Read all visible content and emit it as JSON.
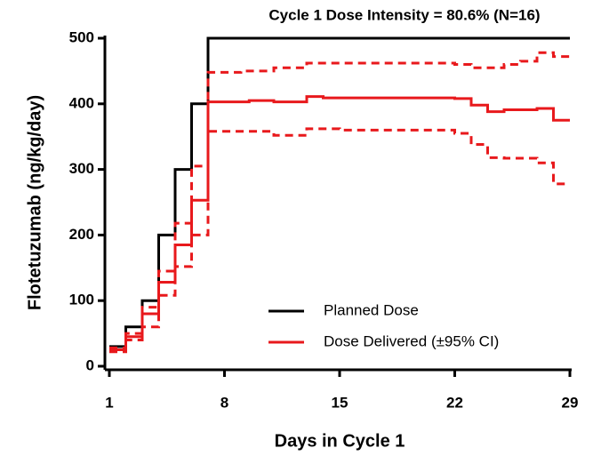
{
  "chart_data": {
    "type": "line",
    "step": "post",
    "title": "Cycle 1 Dose Intensity = 80.6% (N=16)",
    "xlabel": "Days in Cycle 1",
    "ylabel": "Flotetuzumab (ng/kg/day)",
    "xlim": [
      1,
      29
    ],
    "xticks": [
      1,
      8,
      15,
      22,
      29
    ],
    "ylim": [
      0,
      500
    ],
    "yticks": [
      0,
      100,
      200,
      300,
      400,
      500
    ],
    "legend": "lower right",
    "series": [
      {
        "name": "Planned Dose",
        "color": "#000000",
        "x": [
          1,
          2,
          3,
          4,
          5,
          6,
          7,
          29
        ],
        "values": [
          30,
          60,
          100,
          200,
          300,
          400,
          500,
          500
        ]
      },
      {
        "name": "Dose Delivered (±95% CI)",
        "color": "#e8191c",
        "x": [
          1,
          2,
          3,
          4,
          5,
          6,
          7,
          9.5,
          11,
          13,
          14,
          22,
          23,
          24,
          25,
          27,
          28,
          29
        ],
        "values": [
          25,
          45,
          80,
          128,
          185,
          253,
          403,
          405,
          403,
          411,
          409,
          408,
          398,
          388,
          391,
          393,
          375,
          375
        ]
      },
      {
        "color": "#e8191c",
        "dash": true,
        "x": [
          1,
          2,
          3,
          4,
          5,
          6,
          7,
          9,
          11,
          13,
          22,
          23,
          24,
          25,
          26,
          27,
          28,
          29
        ],
        "values": [
          28,
          50,
          90,
          145,
          218,
          305,
          448,
          450,
          455,
          462,
          460,
          455,
          455,
          460,
          465,
          478,
          472,
          472
        ]
      },
      {
        "color": "#e8191c",
        "dash": true,
        "x": [
          1,
          2,
          3,
          4,
          5,
          6,
          7,
          11,
          13,
          15,
          22,
          23,
          24,
          25,
          27,
          28,
          29
        ],
        "values": [
          22,
          40,
          60,
          108,
          152,
          200,
          358,
          352,
          362,
          360,
          355,
          338,
          318,
          317,
          310,
          278,
          278
        ]
      }
    ]
  }
}
